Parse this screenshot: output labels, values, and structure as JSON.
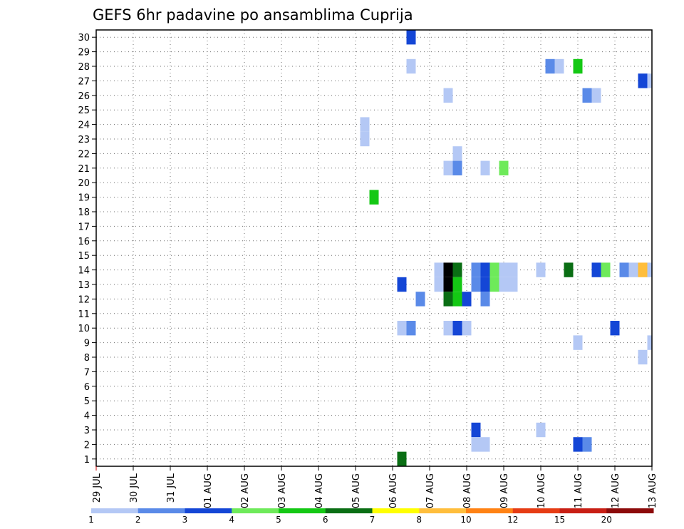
{
  "chart_data": {
    "type": "heatmap",
    "title": "GEFS 6hr padavine po ansamblima Cuprija",
    "xlabel": "",
    "ylabel": "",
    "x_tick_labels": [
      "29 JUL",
      "30 JUL",
      "31 JUL",
      "01 AUG",
      "02 AUG",
      "03 AUG",
      "04 AUG",
      "05 AUG",
      "06 AUG",
      "07 AUG",
      "08 AUG",
      "09 AUG",
      "10 AUG",
      "11 AUG",
      "12 AUG",
      "13 AUG"
    ],
    "y_tick_labels": [
      "1",
      "2",
      "3",
      "4",
      "5",
      "6",
      "7",
      "8",
      "9",
      "10",
      "11",
      "12",
      "13",
      "14",
      "15",
      "16",
      "17",
      "18",
      "19",
      "20",
      "21",
      "22",
      "23",
      "24",
      "25",
      "26",
      "27",
      "28",
      "29",
      "30"
    ],
    "x_range_days": [
      0,
      15
    ],
    "step_hours": 6,
    "ylim": [
      0.5,
      30.5
    ],
    "grid": true,
    "legend": "bottom colorbar",
    "colorbar_levels": [
      "1",
      "2",
      "3",
      "4",
      "5",
      "6",
      "7",
      "8",
      "10",
      "12",
      "15",
      "20"
    ],
    "colorbar_colors": [
      "#b4c8f5",
      "#5a8ae8",
      "#1446d6",
      "#6eea5a",
      "#14c814",
      "#0a6e14",
      "#ffff00",
      "#ffbe3c",
      "#ff8214",
      "#e63c14",
      "#c81e14",
      "#8c0a0a"
    ],
    "points": [
      [
        7.25,
        23,
        1
      ],
      [
        7.25,
        24,
        1
      ],
      [
        7.5,
        19,
        5
      ],
      [
        8.25,
        13,
        3
      ],
      [
        8.25,
        10,
        1
      ],
      [
        8.25,
        1,
        6
      ],
      [
        8.5,
        30,
        3
      ],
      [
        8.5,
        28,
        1
      ],
      [
        8.5,
        10,
        2
      ],
      [
        8.75,
        12,
        2
      ],
      [
        9.25,
        14,
        1
      ],
      [
        9.25,
        13,
        1
      ],
      [
        9.5,
        26,
        1
      ],
      [
        9.5,
        21,
        1
      ],
      [
        9.5,
        14,
        20
      ],
      [
        9.5,
        13,
        20
      ],
      [
        9.5,
        12,
        6
      ],
      [
        9.5,
        10,
        1
      ],
      [
        9.75,
        22,
        1
      ],
      [
        9.75,
        21,
        2
      ],
      [
        9.75,
        14,
        6
      ],
      [
        9.75,
        13,
        5
      ],
      [
        9.75,
        12,
        5
      ],
      [
        9.75,
        10,
        3
      ],
      [
        10,
        12,
        3
      ],
      [
        10,
        10,
        1
      ],
      [
        10.25,
        14,
        2
      ],
      [
        10.25,
        13,
        2
      ],
      [
        10.25,
        3,
        3
      ],
      [
        10.25,
        2,
        1
      ],
      [
        10.5,
        21,
        1
      ],
      [
        10.5,
        14,
        3
      ],
      [
        10.5,
        13,
        3
      ],
      [
        10.5,
        12,
        2
      ],
      [
        10.5,
        2,
        1
      ],
      [
        10.75,
        14,
        4
      ],
      [
        10.75,
        13,
        4
      ],
      [
        11,
        21,
        4
      ],
      [
        11,
        14,
        1
      ],
      [
        11,
        13,
        1
      ],
      [
        11.25,
        14,
        1
      ],
      [
        11.25,
        13,
        1
      ],
      [
        12,
        14,
        1
      ],
      [
        12,
        3,
        1
      ],
      [
        12.25,
        28,
        2
      ],
      [
        12.5,
        28,
        1
      ],
      [
        12.75,
        14,
        6
      ],
      [
        13,
        28,
        5
      ],
      [
        13,
        9,
        1
      ],
      [
        13,
        2,
        3
      ],
      [
        13.25,
        26,
        2
      ],
      [
        13.25,
        2,
        2
      ],
      [
        13.5,
        26,
        1
      ],
      [
        13.5,
        14,
        3
      ],
      [
        13.75,
        14,
        4
      ],
      [
        14,
        10,
        3
      ],
      [
        14.25,
        14,
        2
      ],
      [
        14.5,
        14,
        1
      ],
      [
        14.75,
        27,
        3
      ],
      [
        14.75,
        14,
        8
      ],
      [
        14.75,
        8,
        1
      ],
      [
        15,
        27,
        1
      ],
      [
        15,
        14,
        1
      ],
      [
        15,
        9,
        1
      ]
    ]
  }
}
